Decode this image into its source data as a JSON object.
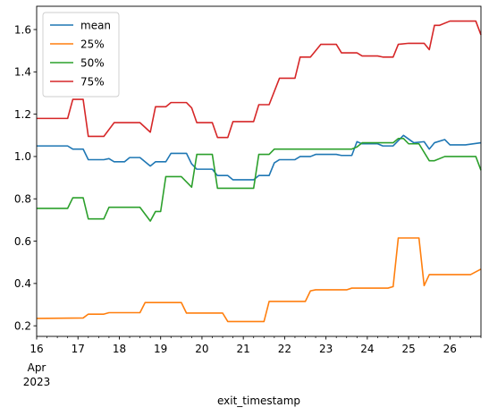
{
  "chart_data": {
    "type": "line",
    "title": "",
    "xlabel": "exit_timestamp",
    "ylabel": "",
    "xlim": [
      "2023-04-16T00:00",
      "2023-04-26T18:00"
    ],
    "ylim": [
      0.15,
      1.71
    ],
    "grid": false,
    "legend_position": "top-left",
    "x_tick_labels": [
      "16",
      "17",
      "18",
      "19",
      "20",
      "21",
      "22",
      "23",
      "24",
      "25",
      "26"
    ],
    "x_tick_sublabels": [
      "Apr",
      "2023"
    ],
    "y_ticks": [
      0.2,
      0.4,
      0.6,
      0.8,
      1.0,
      1.2,
      1.4,
      1.6
    ],
    "y_tick_labels": [
      "0.2",
      "0.4",
      "0.6",
      "0.8",
      "1.0",
      "1.2",
      "1.4",
      "1.6"
    ],
    "colors": {
      "mean": "#1f77b4",
      "25%": "#ff7f0e",
      "50%": "#2ca02c",
      "75%": "#d62728"
    },
    "x": [
      "2023-04-16T00:00",
      "2023-04-16T06:00",
      "2023-04-16T12:00",
      "2023-04-16T18:00",
      "2023-04-17T00:00",
      "2023-04-17T06:00",
      "2023-04-17T12:00",
      "2023-04-17T18:00",
      "2023-04-18T00:00",
      "2023-04-18T06:00",
      "2023-04-18T12:00",
      "2023-04-18T18:00",
      "2023-04-19T00:00",
      "2023-04-19T06:00",
      "2023-04-19T12:00",
      "2023-04-19T18:00",
      "2023-04-20T00:00",
      "2023-04-20T06:00",
      "2023-04-20T12:00",
      "2023-04-20T18:00",
      "2023-04-21T00:00",
      "2023-04-21T06:00",
      "2023-04-21T12:00",
      "2023-04-21T18:00",
      "2023-04-22T00:00",
      "2023-04-22T06:00",
      "2023-04-22T12:00",
      "2023-04-22T18:00",
      "2023-04-23T00:00",
      "2023-04-23T06:00",
      "2023-04-23T12:00",
      "2023-04-23T18:00",
      "2023-04-24T00:00",
      "2023-04-24T06:00",
      "2023-04-24T12:00",
      "2023-04-24T18:00",
      "2023-04-25T00:00",
      "2023-04-25T06:00",
      "2023-04-25T12:00",
      "2023-04-25T18:00",
      "2023-04-26T00:00",
      "2023-04-26T06:00",
      "2023-04-26T12:00",
      "2023-04-26T18:00"
    ],
    "series": [
      {
        "name": "mean",
        "points": [
          [
            "2023-04-16T00:00",
            1.05
          ],
          [
            "2023-04-16T18:00",
            1.05
          ],
          [
            "2023-04-16T21:00",
            1.035
          ],
          [
            "2023-04-17T03:00",
            1.035
          ],
          [
            "2023-04-17T06:00",
            0.985
          ],
          [
            "2023-04-17T15:00",
            0.985
          ],
          [
            "2023-04-17T18:00",
            0.99
          ],
          [
            "2023-04-17T21:00",
            0.975
          ],
          [
            "2023-04-18T03:00",
            0.975
          ],
          [
            "2023-04-18T06:00",
            0.995
          ],
          [
            "2023-04-18T12:00",
            0.995
          ],
          [
            "2023-04-18T18:00",
            0.955
          ],
          [
            "2023-04-18T21:00",
            0.975
          ],
          [
            "2023-04-19T03:00",
            0.975
          ],
          [
            "2023-04-19T06:00",
            1.015
          ],
          [
            "2023-04-19T15:00",
            1.015
          ],
          [
            "2023-04-19T18:00",
            0.965
          ],
          [
            "2023-04-19T21:00",
            0.94
          ],
          [
            "2023-04-20T06:00",
            0.94
          ],
          [
            "2023-04-20T09:00",
            0.91
          ],
          [
            "2023-04-20T15:00",
            0.91
          ],
          [
            "2023-04-20T18:00",
            0.89
          ],
          [
            "2023-04-21T06:00",
            0.89
          ],
          [
            "2023-04-21T09:00",
            0.91
          ],
          [
            "2023-04-21T15:00",
            0.91
          ],
          [
            "2023-04-21T18:00",
            0.97
          ],
          [
            "2023-04-21T21:00",
            0.985
          ],
          [
            "2023-04-22T06:00",
            0.985
          ],
          [
            "2023-04-22T09:00",
            1.0
          ],
          [
            "2023-04-22T15:00",
            1.0
          ],
          [
            "2023-04-22T18:00",
            1.01
          ],
          [
            "2023-04-23T06:00",
            1.01
          ],
          [
            "2023-04-23T09:00",
            1.005
          ],
          [
            "2023-04-23T15:00",
            1.005
          ],
          [
            "2023-04-23T18:00",
            1.07
          ],
          [
            "2023-04-23T21:00",
            1.06
          ],
          [
            "2023-04-24T06:00",
            1.06
          ],
          [
            "2023-04-24T09:00",
            1.05
          ],
          [
            "2023-04-24T15:00",
            1.05
          ],
          [
            "2023-04-24T18:00",
            1.075
          ],
          [
            "2023-04-24T21:00",
            1.1
          ],
          [
            "2023-04-25T03:00",
            1.065
          ],
          [
            "2023-04-25T09:00",
            1.07
          ],
          [
            "2023-04-25T12:00",
            1.035
          ],
          [
            "2023-04-25T15:00",
            1.065
          ],
          [
            "2023-04-25T21:00",
            1.08
          ],
          [
            "2023-04-26T00:00",
            1.055
          ],
          [
            "2023-04-26T09:00",
            1.055
          ],
          [
            "2023-04-26T18:00",
            1.065
          ]
        ]
      },
      {
        "name": "25%",
        "points": [
          [
            "2023-04-16T00:00",
            0.235
          ],
          [
            "2023-04-17T03:00",
            0.237
          ],
          [
            "2023-04-17T06:00",
            0.255
          ],
          [
            "2023-04-17T15:00",
            0.255
          ],
          [
            "2023-04-17T18:00",
            0.262
          ],
          [
            "2023-04-18T12:00",
            0.262
          ],
          [
            "2023-04-18T15:00",
            0.31
          ],
          [
            "2023-04-19T12:00",
            0.31
          ],
          [
            "2023-04-19T15:00",
            0.26
          ],
          [
            "2023-04-20T12:00",
            0.26
          ],
          [
            "2023-04-20T15:00",
            0.22
          ],
          [
            "2023-04-21T12:00",
            0.22
          ],
          [
            "2023-04-21T15:00",
            0.315
          ],
          [
            "2023-04-22T12:00",
            0.315
          ],
          [
            "2023-04-22T15:00",
            0.365
          ],
          [
            "2023-04-22T18:00",
            0.37
          ],
          [
            "2023-04-23T12:00",
            0.37
          ],
          [
            "2023-04-23T15:00",
            0.378
          ],
          [
            "2023-04-24T12:00",
            0.378
          ],
          [
            "2023-04-24T15:00",
            0.385
          ],
          [
            "2023-04-24T18:00",
            0.615
          ],
          [
            "2023-04-25T06:00",
            0.615
          ],
          [
            "2023-04-25T09:00",
            0.39
          ],
          [
            "2023-04-25T12:00",
            0.442
          ],
          [
            "2023-04-26T12:00",
            0.442
          ],
          [
            "2023-04-26T18:00",
            0.468
          ]
        ]
      },
      {
        "name": "50%",
        "points": [
          [
            "2023-04-16T00:00",
            0.755
          ],
          [
            "2023-04-16T18:00",
            0.755
          ],
          [
            "2023-04-16T21:00",
            0.805
          ],
          [
            "2023-04-17T03:00",
            0.805
          ],
          [
            "2023-04-17T06:00",
            0.705
          ],
          [
            "2023-04-17T15:00",
            0.705
          ],
          [
            "2023-04-17T18:00",
            0.76
          ],
          [
            "2023-04-18T12:00",
            0.76
          ],
          [
            "2023-04-18T18:00",
            0.695
          ],
          [
            "2023-04-18T21:00",
            0.74
          ],
          [
            "2023-04-19T00:00",
            0.74
          ],
          [
            "2023-04-19T03:00",
            0.905
          ],
          [
            "2023-04-19T12:00",
            0.905
          ],
          [
            "2023-04-19T18:00",
            0.855
          ],
          [
            "2023-04-19T21:00",
            1.01
          ],
          [
            "2023-04-20T06:00",
            1.01
          ],
          [
            "2023-04-20T09:00",
            0.85
          ],
          [
            "2023-04-21T06:00",
            0.85
          ],
          [
            "2023-04-21T09:00",
            1.01
          ],
          [
            "2023-04-21T15:00",
            1.01
          ],
          [
            "2023-04-21T18:00",
            1.035
          ],
          [
            "2023-04-23T15:00",
            1.035
          ],
          [
            "2023-04-23T18:00",
            1.045
          ],
          [
            "2023-04-23T21:00",
            1.065
          ],
          [
            "2023-04-24T15:00",
            1.065
          ],
          [
            "2023-04-24T18:00",
            1.085
          ],
          [
            "2023-04-24T21:00",
            1.085
          ],
          [
            "2023-04-25T00:00",
            1.06
          ],
          [
            "2023-04-25T06:00",
            1.06
          ],
          [
            "2023-04-25T12:00",
            0.98
          ],
          [
            "2023-04-25T15:00",
            0.98
          ],
          [
            "2023-04-25T21:00",
            1.0
          ],
          [
            "2023-04-26T15:00",
            1.0
          ],
          [
            "2023-04-26T18:00",
            0.935
          ]
        ]
      },
      {
        "name": "75%",
        "points": [
          [
            "2023-04-16T00:00",
            1.18
          ],
          [
            "2023-04-16T18:00",
            1.18
          ],
          [
            "2023-04-16T21:00",
            1.27
          ],
          [
            "2023-04-17T03:00",
            1.27
          ],
          [
            "2023-04-17T06:00",
            1.095
          ],
          [
            "2023-04-17T15:00",
            1.095
          ],
          [
            "2023-04-17T21:00",
            1.16
          ],
          [
            "2023-04-18T12:00",
            1.16
          ],
          [
            "2023-04-18T18:00",
            1.115
          ],
          [
            "2023-04-18T21:00",
            1.235
          ],
          [
            "2023-04-19T03:00",
            1.235
          ],
          [
            "2023-04-19T06:00",
            1.255
          ],
          [
            "2023-04-19T15:00",
            1.255
          ],
          [
            "2023-04-19T18:00",
            1.23
          ],
          [
            "2023-04-19T21:00",
            1.16
          ],
          [
            "2023-04-20T06:00",
            1.16
          ],
          [
            "2023-04-20T09:00",
            1.09
          ],
          [
            "2023-04-20T15:00",
            1.09
          ],
          [
            "2023-04-20T18:00",
            1.165
          ],
          [
            "2023-04-21T06:00",
            1.165
          ],
          [
            "2023-04-21T09:00",
            1.245
          ],
          [
            "2023-04-21T15:00",
            1.245
          ],
          [
            "2023-04-21T21:00",
            1.37
          ],
          [
            "2023-04-22T06:00",
            1.37
          ],
          [
            "2023-04-22T09:00",
            1.47
          ],
          [
            "2023-04-22T15:00",
            1.47
          ],
          [
            "2023-04-22T21:00",
            1.53
          ],
          [
            "2023-04-23T06:00",
            1.53
          ],
          [
            "2023-04-23T09:00",
            1.49
          ],
          [
            "2023-04-23T18:00",
            1.49
          ],
          [
            "2023-04-23T21:00",
            1.475
          ],
          [
            "2023-04-24T06:00",
            1.475
          ],
          [
            "2023-04-24T09:00",
            1.47
          ],
          [
            "2023-04-24T15:00",
            1.47
          ],
          [
            "2023-04-24T18:00",
            1.53
          ],
          [
            "2023-04-25T00:00",
            1.535
          ],
          [
            "2023-04-25T09:00",
            1.535
          ],
          [
            "2023-04-25T12:00",
            1.505
          ],
          [
            "2023-04-25T15:00",
            1.62
          ],
          [
            "2023-04-25T18:00",
            1.62
          ],
          [
            "2023-04-26T00:00",
            1.64
          ],
          [
            "2023-04-26T15:00",
            1.64
          ],
          [
            "2023-04-26T18:00",
            1.575
          ]
        ]
      }
    ]
  }
}
